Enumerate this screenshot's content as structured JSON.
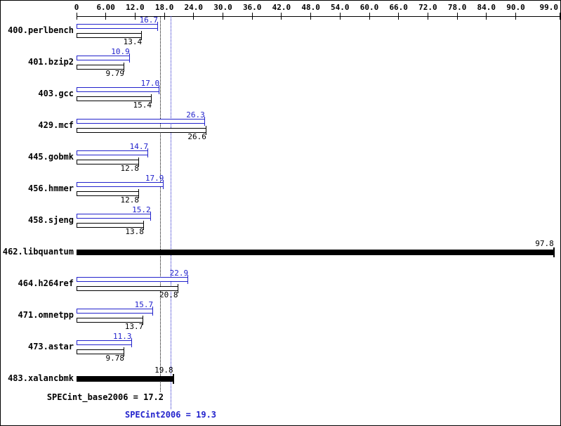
{
  "colors": {
    "peak": "#2222cc",
    "base": "#000000",
    "background": "#ffffff"
  },
  "axis": {
    "ticks": [
      {
        "value": "0",
        "label": "0"
      },
      {
        "value": "6",
        "label": "6.00"
      },
      {
        "value": "12",
        "label": "12.0"
      },
      {
        "value": "18",
        "label": "18.0"
      },
      {
        "value": "24",
        "label": "24.0"
      },
      {
        "value": "30",
        "label": "30.0"
      },
      {
        "value": "36",
        "label": "36.0"
      },
      {
        "value": "42",
        "label": "42.0"
      },
      {
        "value": "48",
        "label": "48.0"
      },
      {
        "value": "54",
        "label": "54.0"
      },
      {
        "value": "60",
        "label": "60.0"
      },
      {
        "value": "66",
        "label": "66.0"
      },
      {
        "value": "72",
        "label": "72.0"
      },
      {
        "value": "78",
        "label": "78.0"
      },
      {
        "value": "84",
        "label": "84.0"
      },
      {
        "value": "90",
        "label": "90.0"
      },
      {
        "value": "99",
        "label": "99.0",
        "align": "right"
      }
    ]
  },
  "chart_data": {
    "type": "bar",
    "orientation": "horizontal",
    "xlim": [
      0,
      99
    ],
    "grid": false,
    "legend": "none",
    "series_ids": [
      "peak",
      "base"
    ],
    "benchmarks": [
      {
        "name": "400.perlbench",
        "peak": "16.7",
        "base": "13.4"
      },
      {
        "name": "401.bzip2",
        "peak": "10.9",
        "base": "9.79"
      },
      {
        "name": "403.gcc",
        "peak": "17.0",
        "base": "15.4"
      },
      {
        "name": "429.mcf",
        "peak": "26.3",
        "base": "26.6"
      },
      {
        "name": "445.gobmk",
        "peak": "14.7",
        "base": "12.8"
      },
      {
        "name": "456.hmmer",
        "peak": "17.9",
        "base": "12.8"
      },
      {
        "name": "458.sjeng",
        "peak": "15.2",
        "base": "13.8"
      },
      {
        "name": "462.libquantum",
        "single": "97.8"
      },
      {
        "name": "464.h264ref",
        "peak": "22.9",
        "base": "20.8"
      },
      {
        "name": "471.omnetpp",
        "peak": "15.7",
        "base": "13.7"
      },
      {
        "name": "473.astar",
        "peak": "11.3",
        "base": "9.78"
      },
      {
        "name": "483.xalancbmk",
        "single": "19.8"
      }
    ],
    "reference_lines": [
      {
        "value": 17.2,
        "color": "#000000",
        "style": "dotted",
        "label": "SPECint_base2006 = 17.2"
      },
      {
        "value": 19.3,
        "color": "#2222cc",
        "style": "dotted",
        "label": "SPECint2006 = 19.3"
      }
    ]
  },
  "summary": {
    "base": "SPECint_base2006 = 17.2",
    "peak": "SPECint2006 = 19.3"
  }
}
